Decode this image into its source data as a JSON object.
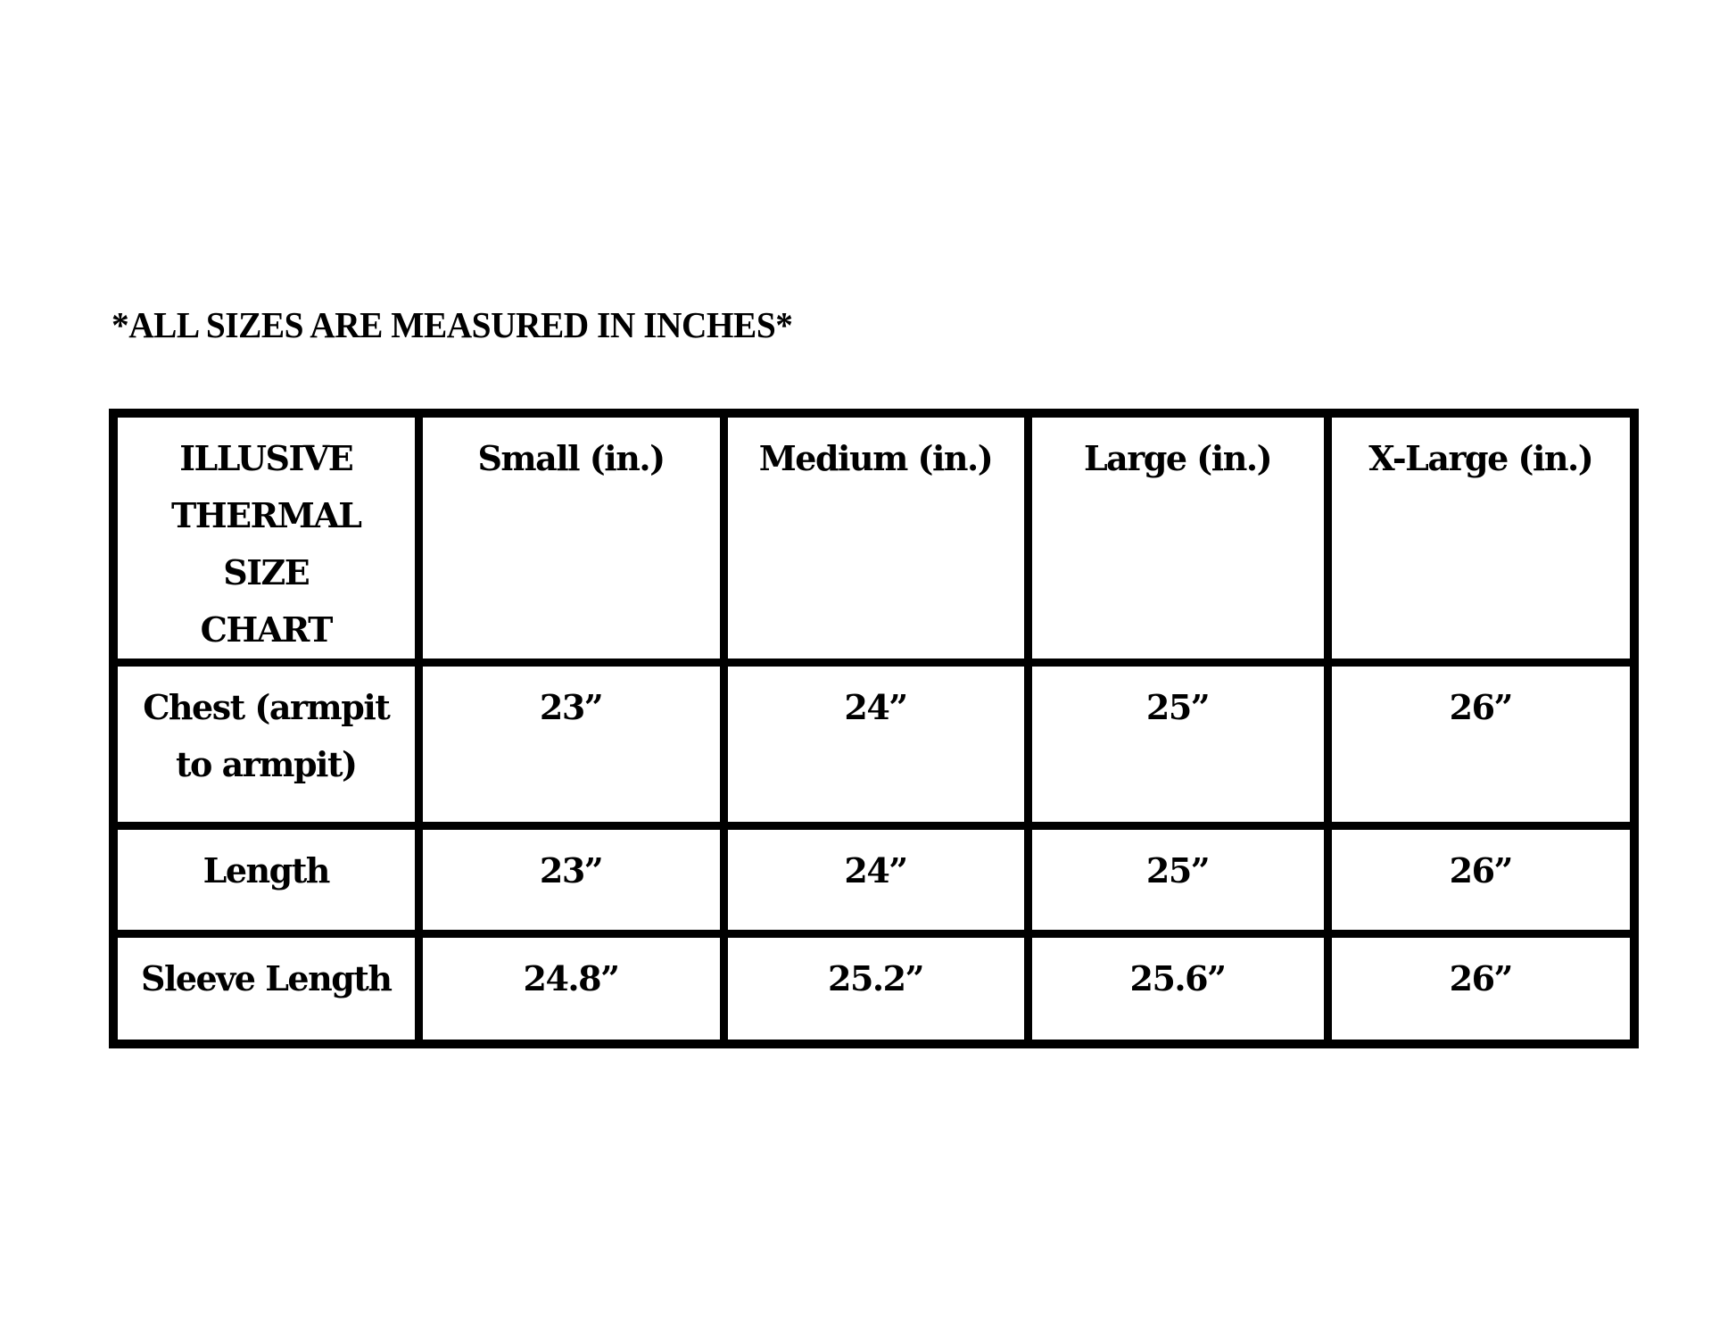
{
  "note": "*ALL SIZES ARE MEASURED IN INCHES*",
  "table": {
    "headers": [
      "ILLUSIVE THERMAL SIZE CHART",
      "Small (in.)",
      "Medium (in.)",
      "Large (in.)",
      "X-Large (in.)"
    ],
    "rows": [
      {
        "label": "Chest (armpit to armpit)",
        "values": [
          "23”",
          "24”",
          "25”",
          "26”"
        ]
      },
      {
        "label": "Length",
        "values": [
          "23”",
          "24”",
          "25”",
          "26”"
        ]
      },
      {
        "label": "Sleeve Length",
        "values": [
          "24.8”",
          "25.2”",
          "25.6”",
          "26”"
        ]
      }
    ]
  }
}
